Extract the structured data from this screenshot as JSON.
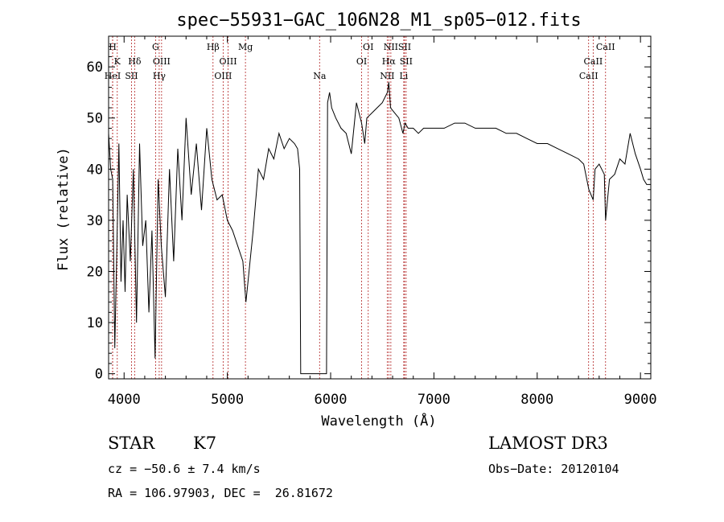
{
  "chart_data": {
    "type": "line",
    "title": "spec−55931−GAC_106N28_M1_sp05−012.fits",
    "xlabel": "Wavelength (Å)",
    "ylabel": "Flux (relative)",
    "xlim": [
      3850,
      9100
    ],
    "ylim": [
      -1,
      66
    ],
    "x_ticks": [
      4000,
      5000,
      6000,
      7000,
      8000,
      9000
    ],
    "y_ticks": [
      0,
      10,
      20,
      30,
      40,
      50,
      60
    ],
    "series": [
      {
        "name": "spectrum",
        "x": [
          3850,
          3870,
          3890,
          3910,
          3930,
          3950,
          3970,
          3990,
          4010,
          4030,
          4060,
          4090,
          4120,
          4150,
          4180,
          4210,
          4240,
          4270,
          4300,
          4330,
          4360,
          4400,
          4440,
          4480,
          4520,
          4560,
          4600,
          4650,
          4700,
          4750,
          4800,
          4850,
          4900,
          4950,
          5000,
          5050,
          5100,
          5150,
          5180,
          5200,
          5250,
          5300,
          5350,
          5400,
          5450,
          5500,
          5550,
          5600,
          5650,
          5680,
          5700,
          5710,
          5720,
          5800,
          5900,
          5950,
          5960,
          5970,
          5990,
          6010,
          6050,
          6100,
          6150,
          6200,
          6250,
          6300,
          6330,
          6350,
          6400,
          6450,
          6500,
          6550,
          6563,
          6580,
          6620,
          6660,
          6700,
          6720,
          6750,
          6800,
          6850,
          6900,
          6950,
          7000,
          7100,
          7200,
          7300,
          7400,
          7500,
          7600,
          7700,
          7800,
          7900,
          8000,
          8100,
          8200,
          8300,
          8400,
          8450,
          8500,
          8542,
          8560,
          8600,
          8650,
          8662,
          8700,
          8750,
          8800,
          8850,
          8900,
          8950,
          9000,
          9030,
          9060,
          9100
        ],
        "y": [
          47,
          40,
          38,
          5,
          25,
          45,
          18,
          30,
          16,
          35,
          22,
          40,
          10,
          45,
          25,
          30,
          12,
          28,
          3,
          38,
          25,
          15,
          40,
          22,
          44,
          30,
          50,
          35,
          45,
          32,
          48,
          38,
          34,
          35,
          30,
          28,
          25,
          22,
          14,
          18,
          28,
          40,
          38,
          44,
          42,
          47,
          44,
          46,
          45,
          44,
          40,
          0,
          0,
          0,
          0,
          0,
          0,
          53,
          55,
          52,
          50,
          48,
          47,
          43,
          53,
          49,
          45,
          50,
          51,
          52,
          53,
          55,
          57,
          52,
          51,
          50,
          47,
          49,
          48,
          48,
          47,
          48,
          48,
          48,
          48,
          49,
          49,
          48,
          48,
          48,
          47,
          47,
          46,
          45,
          45,
          44,
          43,
          42,
          41,
          36,
          34,
          40,
          41,
          39,
          30,
          38,
          39,
          42,
          41,
          47,
          43,
          40,
          38,
          37,
          37
        ]
      }
    ],
    "lines": [
      {
        "label": "H",
        "wl": 3889,
        "row": 0
      },
      {
        "label": "K",
        "wl": 3934,
        "row": 1
      },
      {
        "label": "HeI",
        "wl": 3889,
        "row": 2
      },
      {
        "label": "SII",
        "wl": 4072,
        "row": 2
      },
      {
        "label": "Hδ",
        "wl": 4102,
        "row": 1
      },
      {
        "label": "G",
        "wl": 4305,
        "row": 0
      },
      {
        "label": "OIII",
        "wl": 4363,
        "row": 1
      },
      {
        "label": "Hγ",
        "wl": 4340,
        "row": 2
      },
      {
        "label": "Hβ",
        "wl": 4861,
        "row": 0
      },
      {
        "label": "OIII",
        "wl": 5007,
        "row": 1
      },
      {
        "label": "OIII",
        "wl": 4959,
        "row": 2
      },
      {
        "label": "Mg",
        "wl": 5175,
        "row": 0
      },
      {
        "label": "Na",
        "wl": 5893,
        "row": 2
      },
      {
        "label": "OI",
        "wl": 6364,
        "row": 0
      },
      {
        "label": "OI",
        "wl": 6300,
        "row": 1
      },
      {
        "label": "NII",
        "wl": 6583,
        "row": 0
      },
      {
        "label": "Hα",
        "wl": 6563,
        "row": 1
      },
      {
        "label": "NII",
        "wl": 6548,
        "row": 2
      },
      {
        "label": "SII",
        "wl": 6716,
        "row": 0
      },
      {
        "label": "SII",
        "wl": 6731,
        "row": 1
      },
      {
        "label": "Li",
        "wl": 6708,
        "row": 2
      },
      {
        "label": "CaII",
        "wl": 8662,
        "row": 0
      },
      {
        "label": "CaII",
        "wl": 8542,
        "row": 1
      },
      {
        "label": "CaII",
        "wl": 8498,
        "row": 2
      }
    ]
  },
  "info": {
    "object_class": "STAR",
    "subclass": "K7",
    "survey": "LAMOST DR3",
    "cz": "cz = −50.6 ± 7.4 km/s",
    "obs_date": "Obs−Date: 20120104",
    "coords": "RA = 106.97903, DEC =  26.81672"
  },
  "colors": {
    "spectrum": "#000000",
    "line_markers": "#b22222"
  }
}
